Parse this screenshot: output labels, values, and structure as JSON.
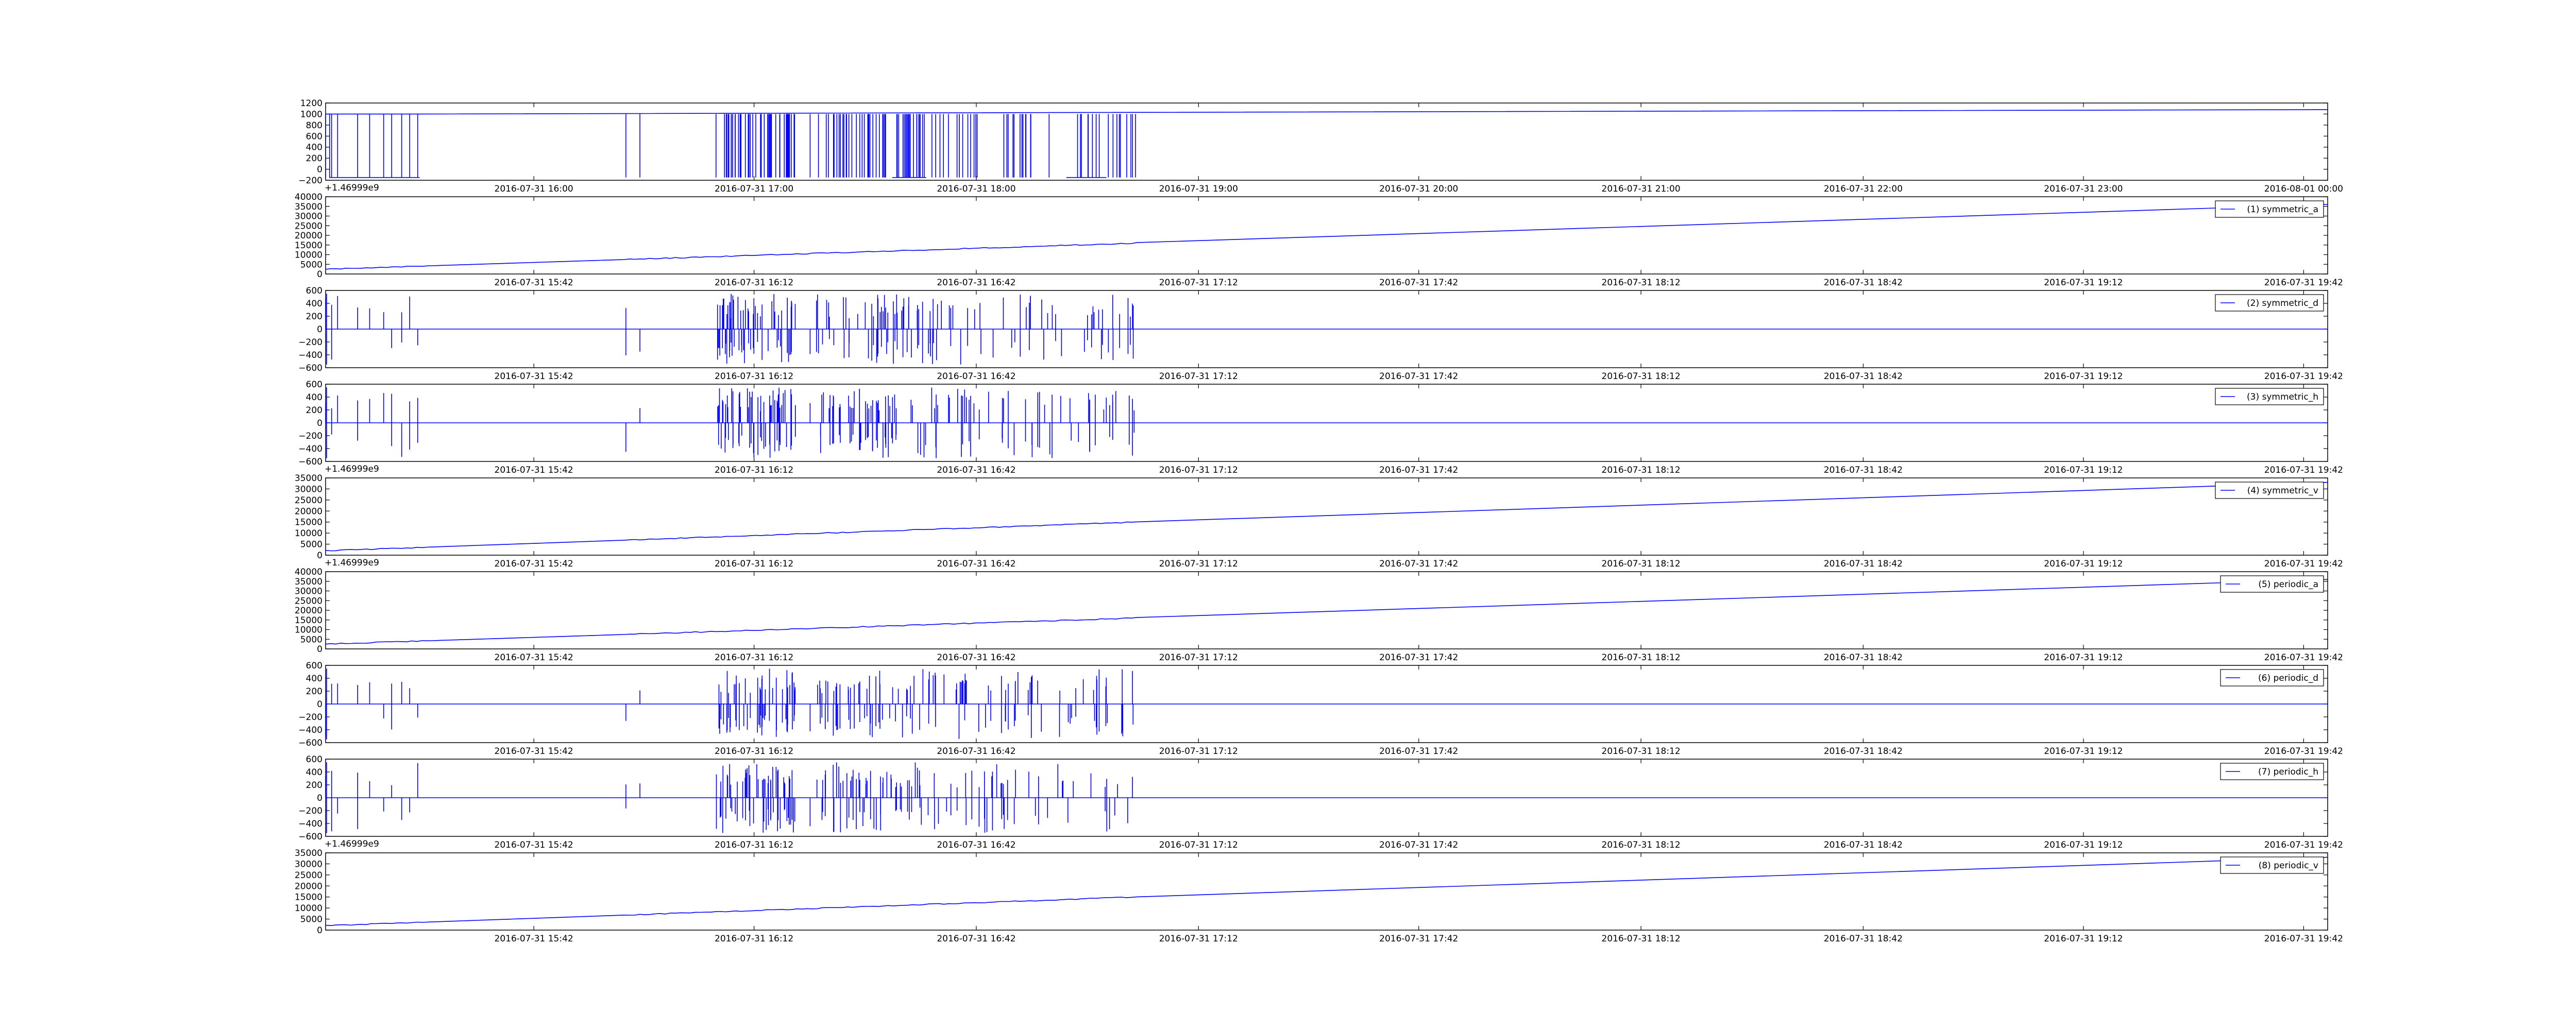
{
  "line_color": "#0000ff",
  "chart_data": [
    {
      "id": "p0",
      "type": "line",
      "legend": null,
      "yticks": [
        "1200",
        "1000",
        "800",
        "600",
        "400",
        "200",
        "0",
        "−200"
      ],
      "ylim": [
        -200,
        1200
      ],
      "xticks": [
        "2016-07-31 16:00",
        "2016-07-31 17:00",
        "2016-07-31 18:00",
        "2016-07-31 19:00",
        "2016-07-31 20:00",
        "2016-07-31 21:00",
        "2016-07-31 22:00",
        "2016-07-31 23:00",
        "2016-08-01 00:00"
      ],
      "offset_text": "+1.46999e9",
      "series": [
        {
          "pattern": "step",
          "baseline": 1000,
          "low": -150,
          "early_low": true
        }
      ]
    },
    {
      "id": "p1",
      "type": "line",
      "legend": "(1) symmetric_a",
      "yticks": [
        "40000",
        "35000",
        "30000",
        "25000",
        "20000",
        "15000",
        "10000",
        "5000",
        "0"
      ],
      "ylim": [
        0,
        40000
      ],
      "xticks": [
        "2016-07-31 15:42",
        "2016-07-31 16:12",
        "2016-07-31 16:42",
        "2016-07-31 17:12",
        "2016-07-31 17:42",
        "2016-07-31 18:12",
        "2016-07-31 18:42",
        "2016-07-31 19:12",
        "2016-07-31 19:42"
      ],
      "offset_text": "",
      "series": [
        {
          "pattern": "ramp",
          "start": 2500,
          "end": 36000,
          "mid": 16000
        }
      ]
    },
    {
      "id": "p2",
      "type": "line",
      "legend": "(2) symmetric_d",
      "yticks": [
        "600",
        "400",
        "200",
        "0",
        "−200",
        "−400",
        "−600"
      ],
      "ylim": [
        -600,
        600
      ],
      "xticks": [
        "2016-07-31 15:42",
        "2016-07-31 16:12",
        "2016-07-31 16:42",
        "2016-07-31 17:12",
        "2016-07-31 17:42",
        "2016-07-31 18:12",
        "2016-07-31 18:42",
        "2016-07-31 19:12",
        "2016-07-31 19:42"
      ],
      "offset_text": "",
      "series": [
        {
          "pattern": "spikes",
          "amp": 550
        }
      ]
    },
    {
      "id": "p3",
      "type": "line",
      "legend": "(3) symmetric_h",
      "yticks": [
        "600",
        "400",
        "200",
        "0",
        "−200",
        "−400",
        "−600"
      ],
      "ylim": [
        -600,
        600
      ],
      "xticks": [
        "2016-07-31 15:42",
        "2016-07-31 16:12",
        "2016-07-31 16:42",
        "2016-07-31 17:12",
        "2016-07-31 17:42",
        "2016-07-31 18:12",
        "2016-07-31 18:42",
        "2016-07-31 19:12",
        "2016-07-31 19:42"
      ],
      "offset_text": "+1.46999e9",
      "series": [
        {
          "pattern": "spikes",
          "amp": 550
        }
      ]
    },
    {
      "id": "p4",
      "type": "line",
      "legend": "(4) symmetric_v",
      "yticks": [
        "35000",
        "30000",
        "25000",
        "20000",
        "15000",
        "10000",
        "5000",
        "0"
      ],
      "ylim": [
        0,
        35000
      ],
      "xticks": [
        "2016-07-31 15:42",
        "2016-07-31 16:12",
        "2016-07-31 16:42",
        "2016-07-31 17:12",
        "2016-07-31 17:42",
        "2016-07-31 18:12",
        "2016-07-31 18:42",
        "2016-07-31 19:12",
        "2016-07-31 19:42"
      ],
      "offset_text": "+1.46999e9",
      "series": [
        {
          "pattern": "ramp",
          "start": 2000,
          "end": 33000,
          "mid": 15000
        }
      ]
    },
    {
      "id": "p5",
      "type": "line",
      "legend": "(5) periodic_a",
      "yticks": [
        "40000",
        "35000",
        "30000",
        "25000",
        "20000",
        "15000",
        "10000",
        "5000",
        "0"
      ],
      "ylim": [
        0,
        40000
      ],
      "xticks": [
        "2016-07-31 15:42",
        "2016-07-31 16:12",
        "2016-07-31 16:42",
        "2016-07-31 17:12",
        "2016-07-31 17:42",
        "2016-07-31 18:12",
        "2016-07-31 18:42",
        "2016-07-31 19:12",
        "2016-07-31 19:42"
      ],
      "offset_text": "",
      "series": [
        {
          "pattern": "ramp",
          "start": 2500,
          "end": 36000,
          "mid": 16000
        }
      ]
    },
    {
      "id": "p6",
      "type": "line",
      "legend": "(6) periodic_d",
      "yticks": [
        "600",
        "400",
        "200",
        "0",
        "−200",
        "−400",
        "−600"
      ],
      "ylim": [
        -600,
        600
      ],
      "xticks": [
        "2016-07-31 15:42",
        "2016-07-31 16:12",
        "2016-07-31 16:42",
        "2016-07-31 17:12",
        "2016-07-31 17:42",
        "2016-07-31 18:12",
        "2016-07-31 18:42",
        "2016-07-31 19:12",
        "2016-07-31 19:42"
      ],
      "offset_text": "",
      "series": [
        {
          "pattern": "spikes",
          "amp": 550
        }
      ]
    },
    {
      "id": "p7",
      "type": "line",
      "legend": "(7) periodic_h",
      "yticks": [
        "600",
        "400",
        "200",
        "0",
        "−200",
        "−400",
        "−600"
      ],
      "ylim": [
        -600,
        600
      ],
      "xticks": [
        "2016-07-31 15:42",
        "2016-07-31 16:12",
        "2016-07-31 16:42",
        "2016-07-31 17:12",
        "2016-07-31 17:42",
        "2016-07-31 18:12",
        "2016-07-31 18:42",
        "2016-07-31 19:12",
        "2016-07-31 19:42"
      ],
      "offset_text": "+1.46999e9",
      "series": [
        {
          "pattern": "spikes",
          "amp": 550
        }
      ]
    },
    {
      "id": "p8",
      "type": "line",
      "legend": "(8) periodic_v",
      "yticks": [
        "35000",
        "30000",
        "25000",
        "20000",
        "15000",
        "10000",
        "5000",
        "0"
      ],
      "ylim": [
        0,
        35000
      ],
      "xticks": [
        "2016-07-31 15:42",
        "2016-07-31 16:12",
        "2016-07-31 16:42",
        "2016-07-31 17:12",
        "2016-07-31 17:42",
        "2016-07-31 18:12",
        "2016-07-31 18:42",
        "2016-07-31 19:12",
        "2016-07-31 19:42"
      ],
      "offset_text": "",
      "series": [
        {
          "pattern": "ramp",
          "start": 2000,
          "end": 33000,
          "mid": 15000
        }
      ]
    }
  ]
}
